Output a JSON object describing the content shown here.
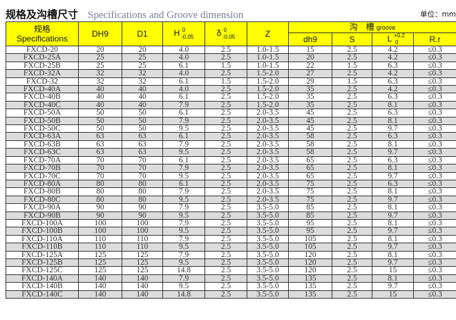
{
  "title": {
    "cn": "规格及沟槽尺寸",
    "en": "Specifications and Groove dimension",
    "unit": "单位：mm"
  },
  "colors": {
    "header_bg": "#ffff00",
    "row_alt": "#dcdcdc"
  },
  "header": {
    "spec_cn": "规格",
    "spec_en": "Specifications",
    "dh9_upper": "DH9",
    "d1": "D1",
    "h": "H",
    "h_tol_upper": "0",
    "h_tol_lower": "-0.05",
    "delta": "δ",
    "delta_tol_upper": "0",
    "delta_tol_lower": "-0.05",
    "z": "Z",
    "groove_cn": "沟　槽",
    "groove_en": "groove",
    "dh9": "dh9",
    "s": "S",
    "l": "L",
    "l_tol_upper": "+0.2",
    "l_tol_lower": "0",
    "rr": "R.r"
  },
  "rows": [
    [
      "FXCD-20",
      "20",
      "20",
      "4.0",
      "2.5",
      "1.0-1.5",
      "15",
      "2.5",
      "4.2",
      "≤0.3"
    ],
    [
      "FXCD-25A",
      "25",
      "25",
      "4.0",
      "2.5",
      "1.0-1.5",
      "20",
      "2.5",
      "4.2",
      "≤0.3"
    ],
    [
      "FXCD-25B",
      "25",
      "25",
      "6.1",
      "1.5",
      "1.0-1.5",
      "22",
      "1.5",
      "6.3",
      "≤0.3"
    ],
    [
      "FXCD-32A",
      "32",
      "32",
      "4.0",
      "2.5",
      "1.5-2.0",
      "27",
      "2.5",
      "4.2",
      "≤0.3"
    ],
    [
      "FXCD-32",
      "32",
      "32",
      "6.1",
      "1.5",
      "1.5-2.0",
      "29",
      "1.5",
      "6.3",
      "≤0.3"
    ],
    [
      "FXCD-40A",
      "40",
      "40",
      "4.0",
      "2.5",
      "1.5-2.0",
      "35",
      "2.5",
      "4.2",
      "≤0.3"
    ],
    [
      "FXCD-40B",
      "40",
      "40",
      "6.1",
      "2.5",
      "1.5-2.0",
      "35",
      "2.5",
      "6.3",
      "≤0.3"
    ],
    [
      "FXCD-40C",
      "40",
      "40",
      "7.9",
      "2.5",
      "1.5-2.0",
      "35",
      "2.5",
      "8.1",
      "≤0.3"
    ],
    [
      "FXCD-50A",
      "50",
      "50",
      "6.1",
      "2.5",
      "2.0-3.5",
      "45",
      "2.5",
      "6.3",
      "≤0.3"
    ],
    [
      "FXCD-50B",
      "50",
      "50",
      "7.9",
      "2.5",
      "2.0-3.5",
      "45",
      "2.5",
      "8.1",
      "≤0.3"
    ],
    [
      "FXCD-50C",
      "50",
      "50",
      "9.5",
      "2.5",
      "2.0-3.5",
      "45",
      "2.5",
      "9.7",
      "≤0.3"
    ],
    [
      "FXCD-63A",
      "63",
      "63",
      "6.1",
      "2.5",
      "2.0-3.5",
      "58",
      "2.5",
      "6.3",
      "≤0.3"
    ],
    [
      "FXCD-63B",
      "63",
      "63",
      "7.9",
      "2.5",
      "2.0-3.5",
      "58",
      "2.5",
      "8.1",
      "≤0.3"
    ],
    [
      "FXCD-63C",
      "63",
      "63",
      "9.5",
      "2.5",
      "2.0-3.5",
      "58",
      "2.5",
      "9.7",
      "≤0.3"
    ],
    [
      "FXCD-70A",
      "70",
      "70",
      "6.1",
      "2.5",
      "2.0-3.5",
      "65",
      "2.5",
      "6.3",
      "≤0.3"
    ],
    [
      "FXCD-70B",
      "70",
      "70",
      "7.9",
      "2.5",
      "2.0-3.5",
      "65",
      "2.5",
      "8.1",
      "≤0.3"
    ],
    [
      "FXCD-70C",
      "70",
      "70",
      "9.5",
      "2.5",
      "2.0-3.5",
      "65",
      "2.5",
      "9.7",
      "≤0.3"
    ],
    [
      "FXCD-80A",
      "80",
      "80",
      "6.1",
      "2.5",
      "2.0-3.5",
      "75",
      "2.5",
      "6.3",
      "≤0.3"
    ],
    [
      "FXCD-80B",
      "80",
      "80",
      "7.9",
      "2.5",
      "2.0-3.5",
      "75",
      "2.5",
      "8.1",
      "≤0.3"
    ],
    [
      "FXCD-80C",
      "80",
      "80",
      "9.5",
      "2.5",
      "2.0-3.5",
      "75",
      "2.5",
      "9.7",
      "≤0.3"
    ],
    [
      "FXCD-90A",
      "90",
      "90",
      "7.9",
      "2.5",
      "3.5-5.0",
      "85",
      "2.5",
      "8.1",
      "≤0.3"
    ],
    [
      "FXCD-90B",
      "90",
      "90",
      "9.5",
      "2.5",
      "3.5-5.0",
      "85",
      "2.5",
      "9.7",
      "≤0.3"
    ],
    [
      "FXCD-100A",
      "100",
      "100",
      "7.9",
      "2.5",
      "3.5-5.0",
      "95",
      "2.5",
      "8.1",
      "≤0.3"
    ],
    [
      "FXCD-100B",
      "100",
      "100",
      "9.5",
      "2.5",
      "3.5-5.0",
      "95",
      "2.5",
      "9.7",
      "≤0.3"
    ],
    [
      "FXCD-110A",
      "110",
      "110",
      "7.9",
      "2.5",
      "3.5-5.0",
      "105",
      "2.5",
      "8.1",
      "≤0.3"
    ],
    [
      "FXCD-110B",
      "110",
      "110",
      "9.5",
      "2.5",
      "3.5-5.0",
      "105",
      "2.5",
      "9.7",
      "≤0.3"
    ],
    [
      "FXCD-125A",
      "125",
      "125",
      "7.9",
      "2.5",
      "3.5-5.0",
      "120",
      "2.5",
      "8.1",
      "≤0.3"
    ],
    [
      "FXCD-125B",
      "125",
      "125",
      "9.5",
      "2.5",
      "3.5-5.0",
      "120",
      "2.5",
      "9.7",
      "≤0.3"
    ],
    [
      "FXCD-125C",
      "125",
      "125",
      "14.8",
      "2.5",
      "3.5-5.0",
      "120",
      "2.5",
      "15",
      "≤0.3"
    ],
    [
      "FXCD-140A",
      "140",
      "140",
      "7.9",
      "2.5",
      "3.5-5.0",
      "135",
      "2.5",
      "8.1",
      "≤0.3"
    ],
    [
      "FXCD-140B",
      "140",
      "140",
      "9.5",
      "2.5",
      "3.5-5.0",
      "135",
      "2.5",
      "9.7",
      "≤0.3"
    ],
    [
      "FXCD-140C",
      "140",
      "140",
      "14.8",
      "2.5",
      "3.5-5.0",
      "135",
      "2.5",
      "15",
      "≤0.3"
    ]
  ]
}
